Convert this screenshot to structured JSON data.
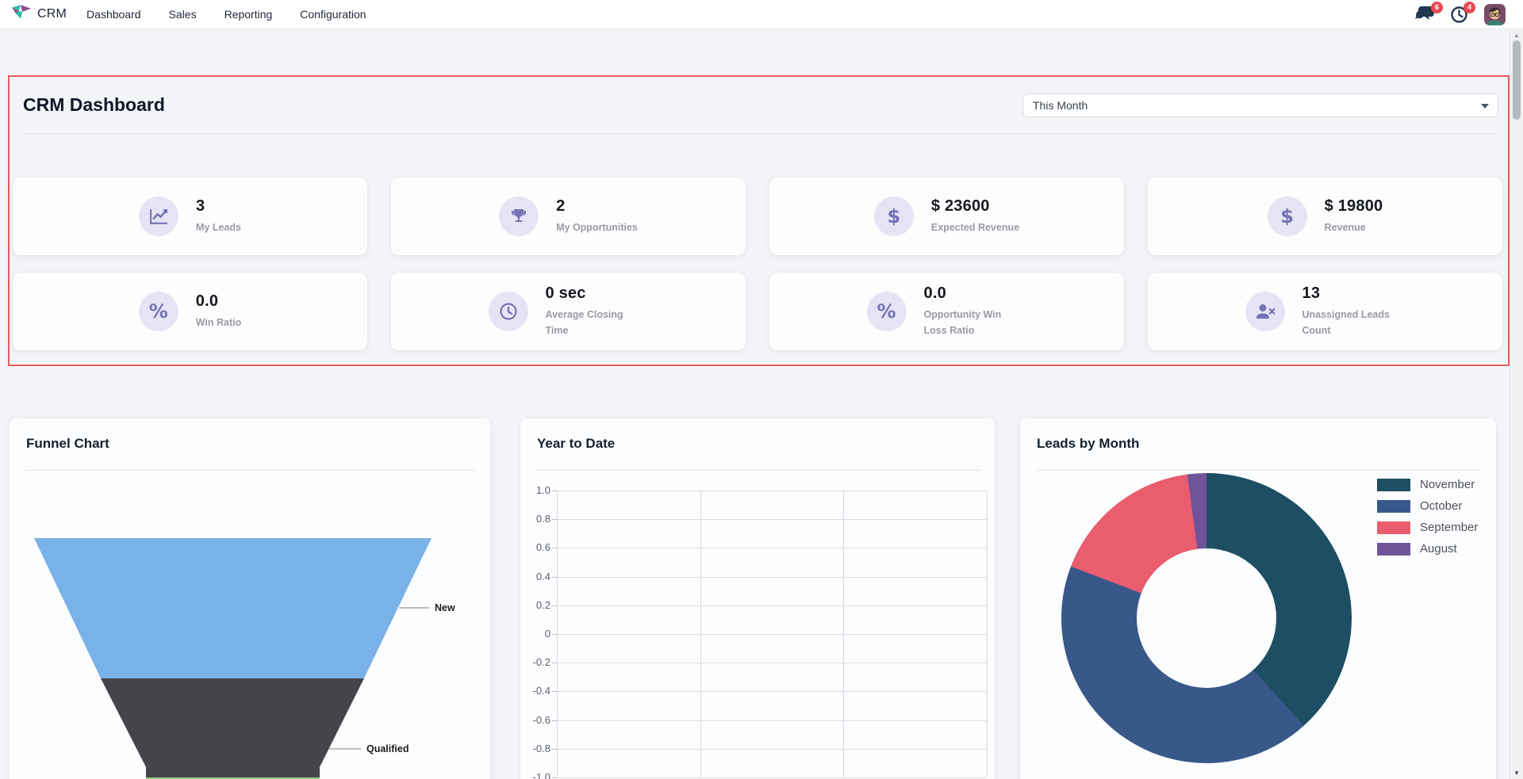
{
  "navbar": {
    "app_name": "CRM",
    "menu_items": [
      {
        "label": "Dashboard"
      },
      {
        "label": "Sales"
      },
      {
        "label": "Reporting"
      },
      {
        "label": "Configuration"
      }
    ],
    "notifications": {
      "messages_count": "6",
      "activities_count": "4"
    },
    "icons": {
      "logo": "crm-diamond-logo",
      "messages": "chat-bubbles-icon",
      "activities": "clock-icon",
      "user": "avatar-image"
    }
  },
  "dashboard": {
    "title": "CRM Dashboard",
    "period_filter": {
      "value": "This Month"
    },
    "kpis": [
      {
        "icon": "trending-up-icon",
        "value": "3",
        "label": "My Leads"
      },
      {
        "icon": "trophy-icon",
        "value": "2",
        "label": "My Opportunities"
      },
      {
        "icon": "dollar-icon",
        "value": "$ 23600",
        "label": "Expected Revenue"
      },
      {
        "icon": "dollar-icon",
        "value": "$ 19800",
        "label": "Revenue"
      },
      {
        "icon": "percent-icon",
        "value": "0.0",
        "label": "Win Ratio"
      },
      {
        "icon": "clock-icon",
        "value": "0 sec",
        "label": "Average Closing Time"
      },
      {
        "icon": "percent-icon",
        "value": "0.0",
        "label": "Opportunity Win Loss Ratio"
      },
      {
        "icon": "user-x-icon",
        "value": "13",
        "label": "Unassigned Leads Count"
      }
    ]
  },
  "colors": {
    "highlight_border": "#e45c5c",
    "badge_red": "#e7484f",
    "kpi_icon_bg": "#e6e4f4",
    "kpi_icon_fg": "#7571b6",
    "navbar_icon": "#22384f",
    "logo_teal": "#2fb8a3",
    "logo_purple": "#8d4d8f"
  },
  "chart_data": [
    {
      "type": "funnel",
      "title": "Funnel Chart",
      "stages": [
        {
          "label": "New",
          "color": "#79b2e8"
        },
        {
          "label": "Qualified",
          "color": "#454449"
        },
        {
          "label": "",
          "color": "#8fd283"
        }
      ]
    },
    {
      "type": "line",
      "title": "Year to Date",
      "series": [],
      "x": [],
      "ylim": [
        -1.0,
        1.0
      ],
      "yticks": [
        "1.0",
        "0.8",
        "0.6",
        "0.4",
        "0.2",
        "0",
        "-0.2",
        "-0.4",
        "-0.6",
        "-0.8",
        "-1.0"
      ],
      "grid": true,
      "x_divisions": 3
    },
    {
      "type": "pie",
      "donut": true,
      "title": "Leads by Month",
      "labels": [
        "November",
        "October",
        "September",
        "August"
      ],
      "values_pct": [
        38.3,
        42.5,
        17.1,
        2.1
      ],
      "colors": [
        "#1d4e63",
        "#38588a",
        "#ea5d6e",
        "#705499"
      ],
      "legend_position": "right"
    }
  ]
}
